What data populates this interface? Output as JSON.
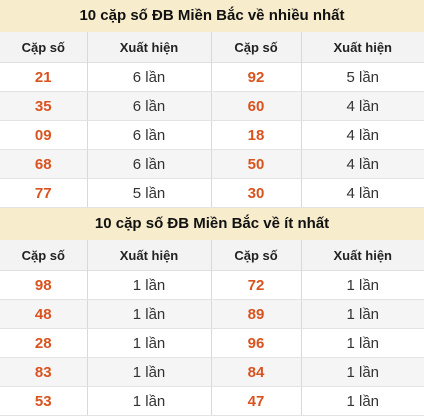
{
  "sections": [
    {
      "title": "10 cặp số ĐB Miền Bắc về nhiều nhất",
      "headers": [
        "Cặp số",
        "Xuất hiện",
        "Cặp số",
        "Xuất hiện"
      ],
      "rows": [
        {
          "n1": "21",
          "c1": "6 lần",
          "n2": "92",
          "c2": "5 lần"
        },
        {
          "n1": "35",
          "c1": "6 lần",
          "n2": "60",
          "c2": "4 lần"
        },
        {
          "n1": "09",
          "c1": "6 lần",
          "n2": "18",
          "c2": "4 lần"
        },
        {
          "n1": "68",
          "c1": "6 lần",
          "n2": "50",
          "c2": "4 lần"
        },
        {
          "n1": "77",
          "c1": "5 lần",
          "n2": "30",
          "c2": "4 lần"
        }
      ]
    },
    {
      "title": "10 cặp số ĐB Miền Bắc về ít nhất",
      "headers": [
        "Cặp số",
        "Xuất hiện",
        "Cặp số",
        "Xuất hiện"
      ],
      "rows": [
        {
          "n1": "98",
          "c1": "1 lần",
          "n2": "72",
          "c2": "1 lần"
        },
        {
          "n1": "48",
          "c1": "1 lần",
          "n2": "89",
          "c2": "1 lần"
        },
        {
          "n1": "28",
          "c1": "1 lần",
          "n2": "96",
          "c2": "1 lần"
        },
        {
          "n1": "83",
          "c1": "1 lần",
          "n2": "84",
          "c2": "1 lần"
        },
        {
          "n1": "53",
          "c1": "1 lần",
          "n2": "47",
          "c2": "1 lần"
        }
      ]
    }
  ],
  "colors": {
    "title_bg": "#f7eccb",
    "number": "#d9531e",
    "header_bg": "#f3f3f3",
    "alt_row": "#f5f5f5"
  }
}
